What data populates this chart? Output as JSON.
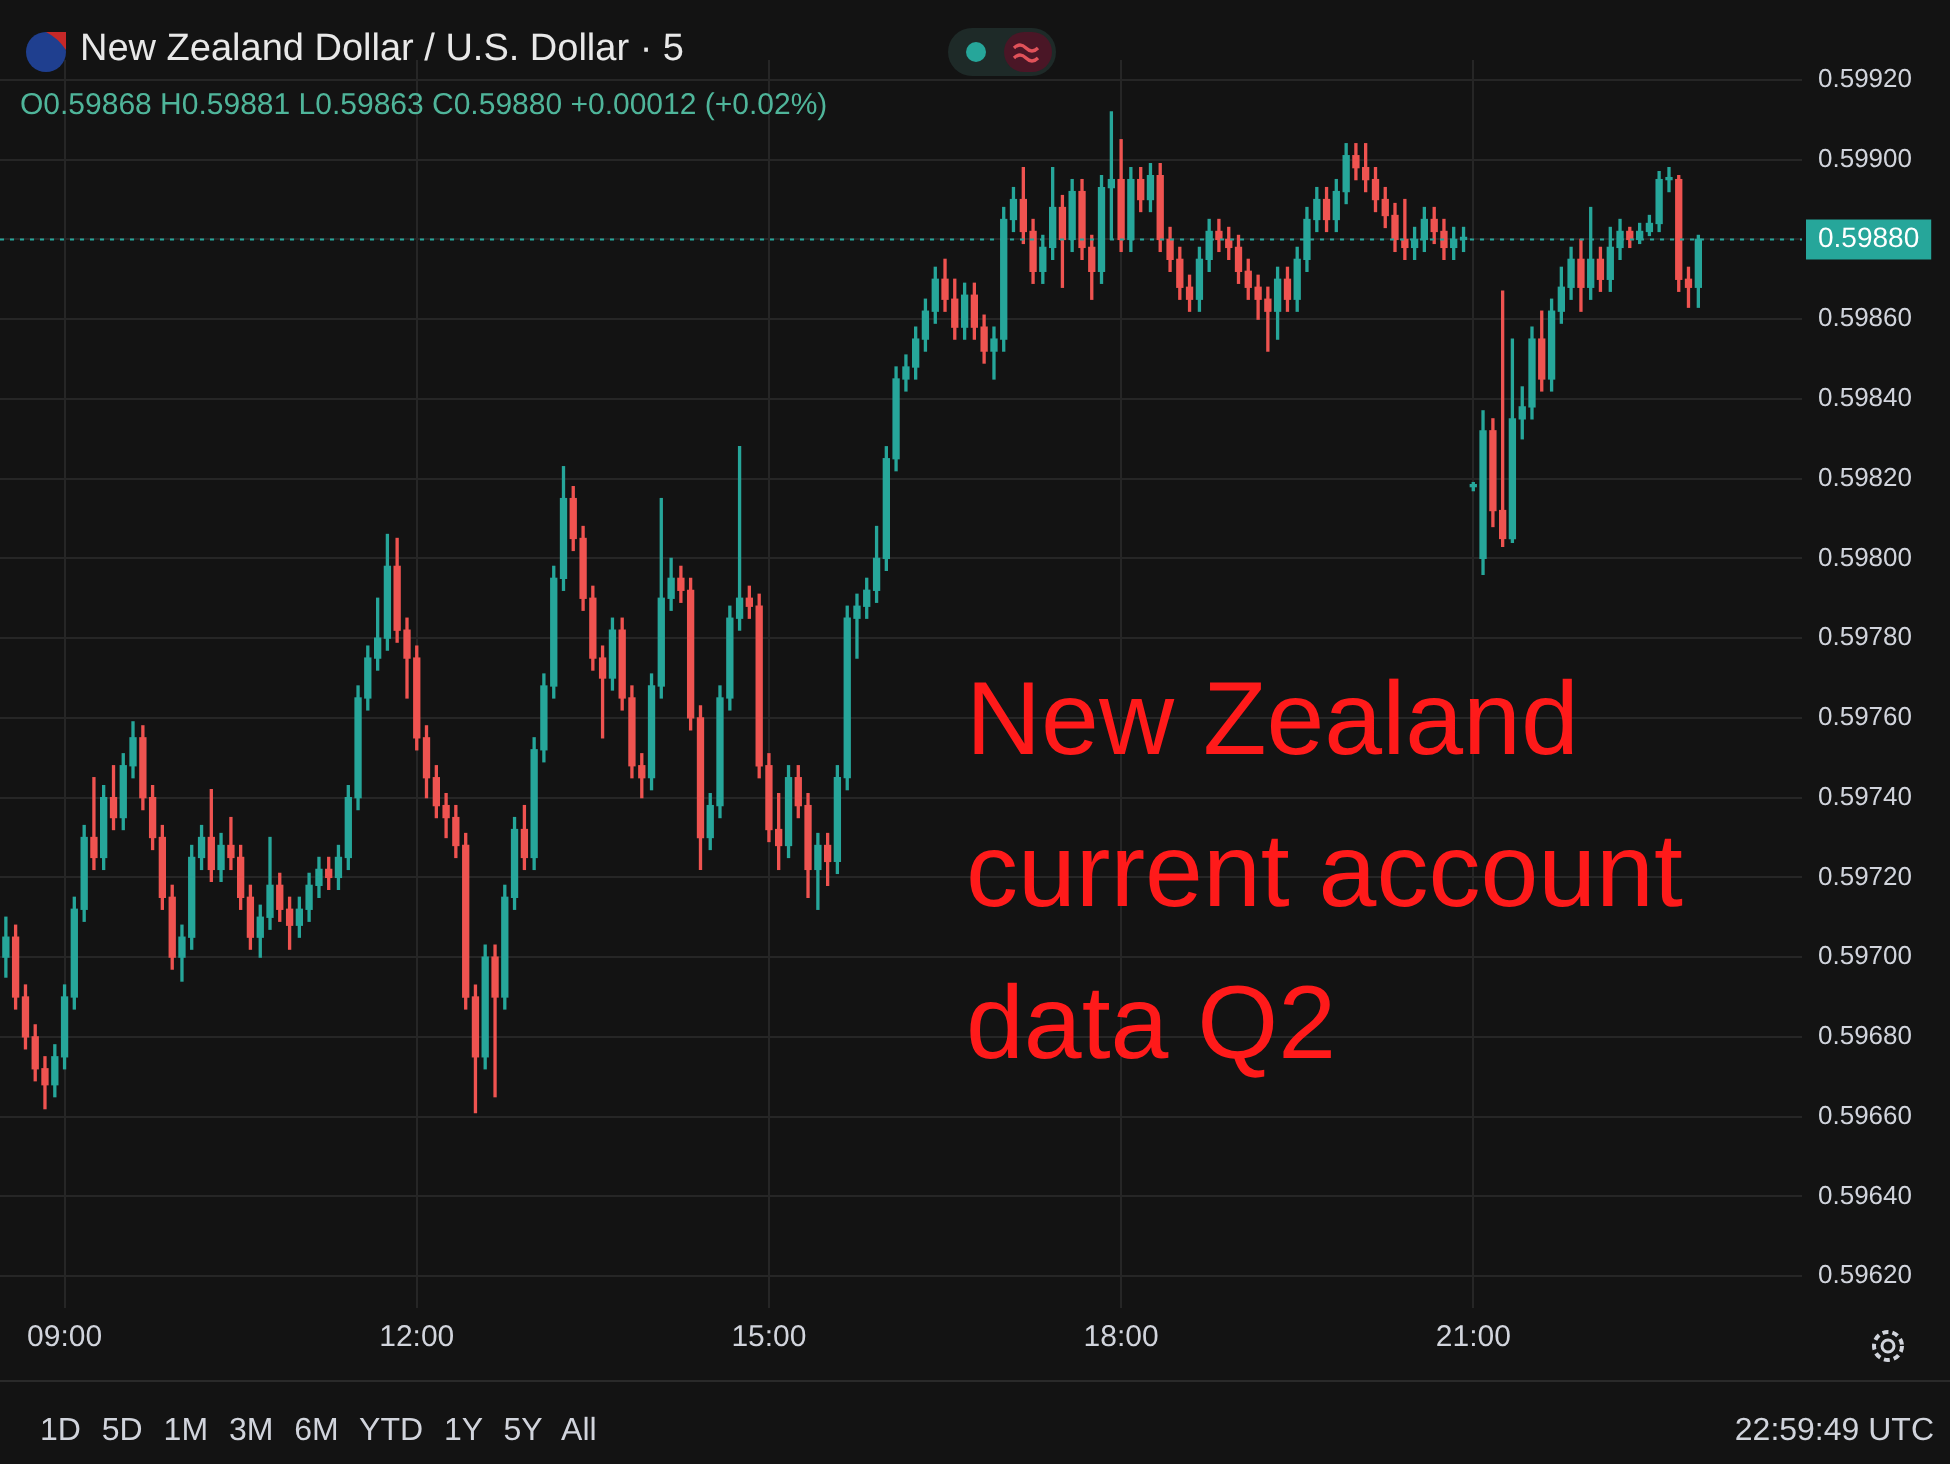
{
  "chart_data": {
    "type": "candlestick",
    "title": "New Zealand Dollar / U.S. Dollar · 5",
    "annotations": [
      "O0.59868 H0.59881 L0.59863 C0.59880 +0.00012 (+0.02%)",
      "New Zealand current account data Q2",
      "1D 5D 1M 3M 6M YTD 1Y 5Y All",
      "22:59:49 UTC"
    ],
    "x": [
      8.5,
      8.583,
      8.667,
      8.75,
      8.833,
      8.917,
      9.0,
      9.083,
      9.167,
      9.25,
      9.333,
      9.417,
      9.5,
      9.583,
      9.667,
      9.75,
      9.833,
      9.917,
      10.0,
      10.083,
      10.167,
      10.25,
      10.333,
      10.417,
      10.5,
      10.583,
      10.667,
      10.75,
      10.833,
      10.917,
      11.0,
      11.083,
      11.167,
      11.25,
      11.333,
      11.417,
      11.5,
      11.583,
      11.667,
      11.75,
      11.833,
      11.917,
      12.0,
      12.083,
      12.167,
      12.25,
      12.333,
      12.417,
      12.5,
      12.583,
      12.667,
      12.75,
      12.833,
      12.917,
      13.0,
      13.083,
      13.167,
      13.25,
      13.333,
      13.417,
      13.5,
      13.583,
      13.667,
      13.75,
      13.833,
      13.917,
      14.0,
      14.083,
      14.167,
      14.25,
      14.333,
      14.417,
      14.5,
      14.583,
      14.667,
      14.75,
      14.833,
      14.917,
      15.0,
      15.083,
      15.167,
      15.25,
      15.333,
      15.417,
      15.5,
      15.583,
      15.667,
      15.75,
      15.833,
      15.917,
      16.0,
      16.083,
      16.167,
      16.25,
      16.333,
      16.417,
      16.5,
      16.583,
      16.667,
      16.75,
      16.833,
      16.917,
      17.0,
      17.083,
      17.167,
      17.25,
      17.333,
      17.417,
      17.5,
      17.583,
      17.667,
      17.75,
      17.833,
      17.917,
      18.0,
      18.083,
      18.167,
      18.25,
      18.333,
      18.417,
      18.5,
      18.583,
      18.667,
      18.75,
      18.833,
      18.917,
      19.0,
      19.083,
      19.167,
      19.25,
      19.333,
      19.417,
      19.5,
      19.583,
      19.667,
      19.75,
      19.833,
      19.917,
      20.0,
      20.083,
      20.167,
      20.25,
      20.333,
      20.417,
      20.5,
      20.583,
      20.667,
      20.75,
      20.833,
      20.917,
      21.0,
      21.083,
      21.167,
      21.25,
      21.333,
      21.417,
      21.5,
      21.583,
      21.667,
      21.75,
      21.833,
      21.917,
      22.0,
      22.083,
      22.167,
      22.25,
      22.333,
      22.417,
      22.5,
      22.583,
      22.667,
      22.75,
      22.833,
      22.917
    ],
    "ohlc": [
      [
        0.597,
        0.5971,
        0.59695,
        0.59705
      ],
      [
        0.59705,
        0.59708,
        0.59687,
        0.5969
      ],
      [
        0.5969,
        0.59693,
        0.59677,
        0.5968
      ],
      [
        0.5968,
        0.59683,
        0.59669,
        0.59672
      ],
      [
        0.59672,
        0.59675,
        0.59662,
        0.59668
      ],
      [
        0.59668,
        0.59678,
        0.59665,
        0.59675
      ],
      [
        0.59675,
        0.59693,
        0.59672,
        0.5969
      ],
      [
        0.5969,
        0.59715,
        0.59687,
        0.59712
      ],
      [
        0.59712,
        0.59733,
        0.59709,
        0.5973
      ],
      [
        0.5973,
        0.59745,
        0.59722,
        0.59725
      ],
      [
        0.59725,
        0.59743,
        0.59722,
        0.5974
      ],
      [
        0.5974,
        0.59748,
        0.59732,
        0.59735
      ],
      [
        0.59735,
        0.59751,
        0.59732,
        0.59748
      ],
      [
        0.59748,
        0.59759,
        0.59745,
        0.59755
      ],
      [
        0.59755,
        0.59758,
        0.59737,
        0.5974
      ],
      [
        0.5974,
        0.59743,
        0.59727,
        0.5973
      ],
      [
        0.5973,
        0.59733,
        0.59712,
        0.59715
      ],
      [
        0.59715,
        0.59718,
        0.59697,
        0.597
      ],
      [
        0.597,
        0.59708,
        0.59694,
        0.59705
      ],
      [
        0.59705,
        0.59728,
        0.59702,
        0.59725
      ],
      [
        0.59725,
        0.59733,
        0.59722,
        0.5973
      ],
      [
        0.5973,
        0.59742,
        0.59719,
        0.59722
      ],
      [
        0.59722,
        0.59731,
        0.59719,
        0.59728
      ],
      [
        0.59728,
        0.59735,
        0.59722,
        0.59725
      ],
      [
        0.59725,
        0.59728,
        0.59712,
        0.59715
      ],
      [
        0.59715,
        0.59718,
        0.59702,
        0.59705
      ],
      [
        0.59705,
        0.59713,
        0.597,
        0.5971
      ],
      [
        0.5971,
        0.5973,
        0.59707,
        0.59718
      ],
      [
        0.59718,
        0.59721,
        0.59709,
        0.59712
      ],
      [
        0.59712,
        0.59715,
        0.59702,
        0.59708
      ],
      [
        0.59708,
        0.59715,
        0.59705,
        0.59712
      ],
      [
        0.59712,
        0.59721,
        0.59709,
        0.59718
      ],
      [
        0.59718,
        0.59725,
        0.59715,
        0.59722
      ],
      [
        0.59722,
        0.59725,
        0.59717,
        0.5972
      ],
      [
        0.5972,
        0.59728,
        0.59717,
        0.59725
      ],
      [
        0.59725,
        0.59743,
        0.59722,
        0.5974
      ],
      [
        0.5974,
        0.59768,
        0.59737,
        0.59765
      ],
      [
        0.59765,
        0.59778,
        0.59762,
        0.59775
      ],
      [
        0.59775,
        0.5979,
        0.59772,
        0.5978
      ],
      [
        0.5978,
        0.59806,
        0.59777,
        0.59798
      ],
      [
        0.59798,
        0.59805,
        0.59779,
        0.59782
      ],
      [
        0.59782,
        0.59785,
        0.59765,
        0.59775
      ],
      [
        0.59775,
        0.59778,
        0.59752,
        0.59755
      ],
      [
        0.59755,
        0.59758,
        0.5974,
        0.59745
      ],
      [
        0.59745,
        0.59748,
        0.59735,
        0.59738
      ],
      [
        0.59738,
        0.59741,
        0.5973,
        0.59735
      ],
      [
        0.59735,
        0.59738,
        0.59725,
        0.59728
      ],
      [
        0.59728,
        0.59731,
        0.59687,
        0.5969
      ],
      [
        0.5969,
        0.59693,
        0.59661,
        0.59675
      ],
      [
        0.59675,
        0.59703,
        0.59672,
        0.597
      ],
      [
        0.597,
        0.59703,
        0.59665,
        0.5969
      ],
      [
        0.5969,
        0.59718,
        0.59687,
        0.59715
      ],
      [
        0.59715,
        0.59735,
        0.59712,
        0.59732
      ],
      [
        0.59732,
        0.59738,
        0.59722,
        0.59725
      ],
      [
        0.59725,
        0.59755,
        0.59722,
        0.59752
      ],
      [
        0.59752,
        0.59771,
        0.59749,
        0.59768
      ],
      [
        0.59768,
        0.59798,
        0.59765,
        0.59795
      ],
      [
        0.59795,
        0.59823,
        0.59792,
        0.59815
      ],
      [
        0.59815,
        0.59818,
        0.59802,
        0.59805
      ],
      [
        0.59805,
        0.59808,
        0.59787,
        0.5979
      ],
      [
        0.5979,
        0.59793,
        0.59772,
        0.59775
      ],
      [
        0.59775,
        0.59778,
        0.59755,
        0.5977
      ],
      [
        0.5977,
        0.59785,
        0.59767,
        0.59782
      ],
      [
        0.59782,
        0.59785,
        0.59762,
        0.59765
      ],
      [
        0.59765,
        0.59768,
        0.59745,
        0.59748
      ],
      [
        0.59748,
        0.59751,
        0.5974,
        0.59745
      ],
      [
        0.59745,
        0.59771,
        0.59742,
        0.59768
      ],
      [
        0.59768,
        0.59815,
        0.59765,
        0.5979
      ],
      [
        0.5979,
        0.598,
        0.59787,
        0.59795
      ],
      [
        0.59795,
        0.59798,
        0.59789,
        0.59792
      ],
      [
        0.59792,
        0.59795,
        0.59757,
        0.5976
      ],
      [
        0.5976,
        0.59763,
        0.59722,
        0.5973
      ],
      [
        0.5973,
        0.59741,
        0.59727,
        0.59738
      ],
      [
        0.59738,
        0.59768,
        0.59735,
        0.59765
      ],
      [
        0.59765,
        0.59788,
        0.59762,
        0.59785
      ],
      [
        0.59785,
        0.59828,
        0.59782,
        0.5979
      ],
      [
        0.5979,
        0.59793,
        0.59785,
        0.59788
      ],
      [
        0.59788,
        0.59791,
        0.59745,
        0.59748
      ],
      [
        0.59748,
        0.59751,
        0.59729,
        0.59732
      ],
      [
        0.59732,
        0.59741,
        0.59722,
        0.59728
      ],
      [
        0.59728,
        0.59748,
        0.59725,
        0.59745
      ],
      [
        0.59745,
        0.59748,
        0.59735,
        0.59738
      ],
      [
        0.59738,
        0.59741,
        0.59715,
        0.59722
      ],
      [
        0.59722,
        0.59731,
        0.59712,
        0.59728
      ],
      [
        0.59728,
        0.59731,
        0.59718,
        0.59724
      ],
      [
        0.59724,
        0.59748,
        0.59721,
        0.59745
      ],
      [
        0.59745,
        0.59788,
        0.59742,
        0.59785
      ],
      [
        0.59785,
        0.59791,
        0.59775,
        0.59788
      ],
      [
        0.59788,
        0.59795,
        0.59785,
        0.59792
      ],
      [
        0.59792,
        0.59808,
        0.59789,
        0.598
      ],
      [
        0.598,
        0.59828,
        0.59797,
        0.59825
      ],
      [
        0.59825,
        0.59848,
        0.59822,
        0.59845
      ],
      [
        0.59845,
        0.59851,
        0.59842,
        0.59848
      ],
      [
        0.59848,
        0.59858,
        0.59845,
        0.59855
      ],
      [
        0.59855,
        0.59865,
        0.59852,
        0.59862
      ],
      [
        0.59862,
        0.59873,
        0.59859,
        0.5987
      ],
      [
        0.5987,
        0.59875,
        0.59862,
        0.59865
      ],
      [
        0.59865,
        0.5987,
        0.59855,
        0.59858
      ],
      [
        0.59858,
        0.59869,
        0.59855,
        0.59866
      ],
      [
        0.59866,
        0.59869,
        0.59855,
        0.59858
      ],
      [
        0.59858,
        0.59861,
        0.59849,
        0.59852
      ],
      [
        0.59852,
        0.59858,
        0.59845,
        0.59855
      ],
      [
        0.59855,
        0.59888,
        0.59852,
        0.59885
      ],
      [
        0.59885,
        0.59893,
        0.59882,
        0.5989
      ],
      [
        0.5989,
        0.59898,
        0.59879,
        0.59882
      ],
      [
        0.59882,
        0.59885,
        0.59869,
        0.59872
      ],
      [
        0.59872,
        0.59881,
        0.59869,
        0.59878
      ],
      [
        0.59878,
        0.59898,
        0.59875,
        0.59888
      ],
      [
        0.59888,
        0.59891,
        0.59868,
        0.5988
      ],
      [
        0.5988,
        0.59895,
        0.59877,
        0.59892
      ],
      [
        0.59892,
        0.59895,
        0.59875,
        0.59878
      ],
      [
        0.59878,
        0.59881,
        0.59865,
        0.59872
      ],
      [
        0.59872,
        0.59896,
        0.59869,
        0.59893
      ],
      [
        0.59893,
        0.59912,
        0.5988,
        0.59895
      ],
      [
        0.59895,
        0.59905,
        0.59877,
        0.5988
      ],
      [
        0.5988,
        0.59898,
        0.59877,
        0.59895
      ],
      [
        0.59895,
        0.59898,
        0.59887,
        0.5989
      ],
      [
        0.5989,
        0.59899,
        0.59887,
        0.59896
      ],
      [
        0.59896,
        0.59899,
        0.59877,
        0.5988
      ],
      [
        0.5988,
        0.59883,
        0.59872,
        0.59875
      ],
      [
        0.59875,
        0.59878,
        0.59865,
        0.59868
      ],
      [
        0.59868,
        0.59871,
        0.59862,
        0.59865
      ],
      [
        0.59865,
        0.59878,
        0.59862,
        0.59875
      ],
      [
        0.59875,
        0.59885,
        0.59872,
        0.59882
      ],
      [
        0.59882,
        0.59885,
        0.59877,
        0.5988
      ],
      [
        0.5988,
        0.59883,
        0.59875,
        0.59878
      ],
      [
        0.59878,
        0.59881,
        0.59869,
        0.59872
      ],
      [
        0.59872,
        0.59875,
        0.59865,
        0.59868
      ],
      [
        0.59868,
        0.59871,
        0.5986,
        0.59865
      ],
      [
        0.59865,
        0.59868,
        0.59852,
        0.59862
      ],
      [
        0.59862,
        0.59873,
        0.59855,
        0.5987
      ],
      [
        0.5987,
        0.59873,
        0.59862,
        0.59865
      ],
      [
        0.59865,
        0.59878,
        0.59862,
        0.59875
      ],
      [
        0.59875,
        0.59888,
        0.59872,
        0.59885
      ],
      [
        0.59885,
        0.59893,
        0.59882,
        0.5989
      ],
      [
        0.5989,
        0.59893,
        0.59882,
        0.59885
      ],
      [
        0.59885,
        0.59895,
        0.59882,
        0.59892
      ],
      [
        0.59892,
        0.59904,
        0.59889,
        0.59901
      ],
      [
        0.59901,
        0.59904,
        0.59895,
        0.59898
      ],
      [
        0.59898,
        0.59904,
        0.59892,
        0.59895
      ],
      [
        0.59895,
        0.59898,
        0.59887,
        0.5989
      ],
      [
        0.5989,
        0.59893,
        0.59883,
        0.59886
      ],
      [
        0.59886,
        0.59889,
        0.59877,
        0.5988
      ],
      [
        0.5988,
        0.5989,
        0.59875,
        0.59878
      ],
      [
        0.59878,
        0.59883,
        0.59875,
        0.5988
      ],
      [
        0.5988,
        0.59888,
        0.59877,
        0.59885
      ],
      [
        0.59885,
        0.59888,
        0.59879,
        0.59882
      ],
      [
        0.59882,
        0.59885,
        0.59875,
        0.59878
      ],
      [
        0.59878,
        0.59883,
        0.59875,
        0.5988
      ],
      [
        0.5988,
        0.59883,
        0.59877,
        0.5988
      ],
      [
        0.59818,
        0.59819,
        0.59817,
        0.59818
      ],
      [
        0.598,
        0.59837,
        0.59796,
        0.59832
      ],
      [
        0.59832,
        0.59835,
        0.59808,
        0.59812
      ],
      [
        0.59812,
        0.59867,
        0.59803,
        0.59805
      ],
      [
        0.59805,
        0.59855,
        0.59804,
        0.59835
      ],
      [
        0.59835,
        0.59843,
        0.5983,
        0.59838
      ],
      [
        0.59838,
        0.59858,
        0.59835,
        0.59855
      ],
      [
        0.59855,
        0.59862,
        0.59842,
        0.59845
      ],
      [
        0.59845,
        0.59865,
        0.59842,
        0.59862
      ],
      [
        0.59862,
        0.59873,
        0.59859,
        0.59868
      ],
      [
        0.59868,
        0.59878,
        0.59865,
        0.59875
      ],
      [
        0.59875,
        0.5988,
        0.59862,
        0.59868
      ],
      [
        0.59868,
        0.59888,
        0.59865,
        0.59875
      ],
      [
        0.59875,
        0.59878,
        0.59867,
        0.5987
      ],
      [
        0.5987,
        0.59883,
        0.59867,
        0.59878
      ],
      [
        0.59878,
        0.59885,
        0.59875,
        0.59882
      ],
      [
        0.59882,
        0.59883,
        0.59878,
        0.5988
      ],
      [
        0.5988,
        0.59884,
        0.59879,
        0.59882
      ],
      [
        0.59882,
        0.59886,
        0.59881,
        0.59884
      ],
      [
        0.59884,
        0.59897,
        0.59882,
        0.59895
      ],
      [
        0.59895,
        0.59898,
        0.59892,
        0.59895
      ],
      [
        0.59895,
        0.59896,
        0.59867,
        0.5987
      ],
      [
        0.5987,
        0.59873,
        0.59863,
        0.59868
      ],
      [
        0.59868,
        0.59881,
        0.59863,
        0.5988
      ]
    ],
    "xlim": [
      8.45,
      23.8
    ],
    "xticks": [
      {
        "value": 9,
        "label": "09:00"
      },
      {
        "value": 12,
        "label": "12:00"
      },
      {
        "value": 15,
        "label": "15:00"
      },
      {
        "value": 18,
        "label": "18:00"
      },
      {
        "value": 21,
        "label": "21:00"
      }
    ],
    "ylim": [
      0.59612,
      0.59925
    ],
    "yticks": [
      {
        "value": 0.5962,
        "label": "0.59620"
      },
      {
        "value": 0.5964,
        "label": "0.59640"
      },
      {
        "value": 0.5966,
        "label": "0.59660"
      },
      {
        "value": 0.5968,
        "label": "0.59680"
      },
      {
        "value": 0.597,
        "label": "0.59700"
      },
      {
        "value": 0.5972,
        "label": "0.59720"
      },
      {
        "value": 0.5974,
        "label": "0.59740"
      },
      {
        "value": 0.5976,
        "label": "0.59760"
      },
      {
        "value": 0.5978,
        "label": "0.59780"
      },
      {
        "value": 0.598,
        "label": "0.59800"
      },
      {
        "value": 0.5982,
        "label": "0.59820"
      },
      {
        "value": 0.5984,
        "label": "0.59840"
      },
      {
        "value": 0.5986,
        "label": "0.59860"
      },
      {
        "value": 0.5988,
        "label": null
      },
      {
        "value": 0.599,
        "label": "0.59900"
      },
      {
        "value": 0.5992,
        "label": "0.59920"
      }
    ],
    "ref_lines": [
      {
        "axis": "y",
        "value": 0.5988,
        "label": "0.59880",
        "color": "#26a69a",
        "line_style": "dotted"
      }
    ],
    "grid": true,
    "legend": false
  }
}
